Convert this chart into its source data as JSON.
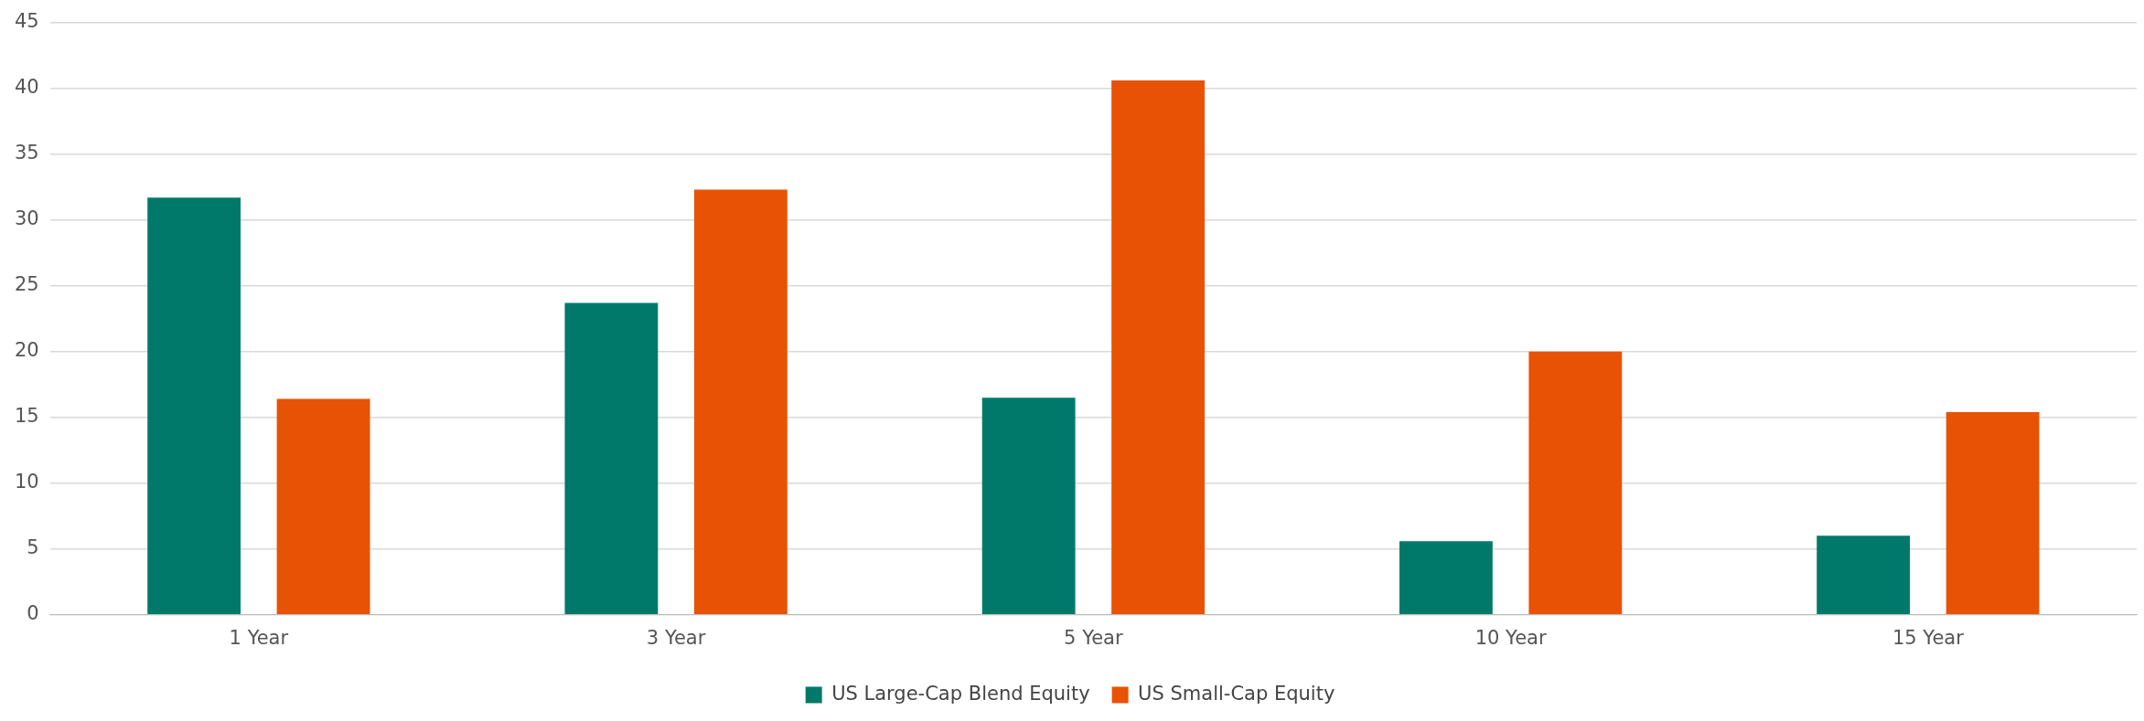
{
  "chart_data": {
    "type": "bar",
    "categories": [
      "1 Year",
      "3 Year",
      "5 Year",
      "10 Year",
      "15 Year"
    ],
    "series": [
      {
        "name": "US Large-Cap Blend Equity",
        "color": "#00796b",
        "values": [
          31.7,
          23.7,
          16.5,
          5.6,
          6.0
        ]
      },
      {
        "name": "US Small-Cap Equity",
        "color": "#e85204",
        "values": [
          16.4,
          32.3,
          40.6,
          20.0,
          15.4
        ]
      }
    ],
    "ylim": [
      0,
      45
    ],
    "yticks": [
      0,
      5,
      10,
      15,
      20,
      25,
      30,
      35,
      40,
      45
    ],
    "grid": "y",
    "legend": "bottom"
  }
}
